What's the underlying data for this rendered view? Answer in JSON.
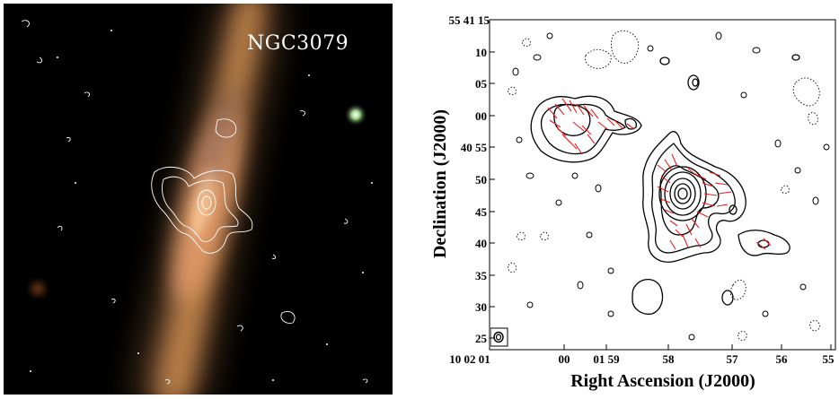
{
  "left_panel": {
    "object_name": "NGC3079",
    "contour_color": "#ffffff"
  },
  "right_panel": {
    "y_axis_title": "Declination (J2000)",
    "x_axis_title": "Right Ascension (J2000)",
    "y_ticks": [
      "55 41 15",
      "10",
      "05",
      "00",
      "40 55",
      "50",
      "45",
      "40",
      "35",
      "30",
      "25"
    ],
    "x_ticks": [
      "10 02 01",
      "00",
      "01 59",
      "58",
      "57",
      "56",
      "55"
    ],
    "contour_color": "#000000",
    "vector_color": "#e02020"
  }
}
